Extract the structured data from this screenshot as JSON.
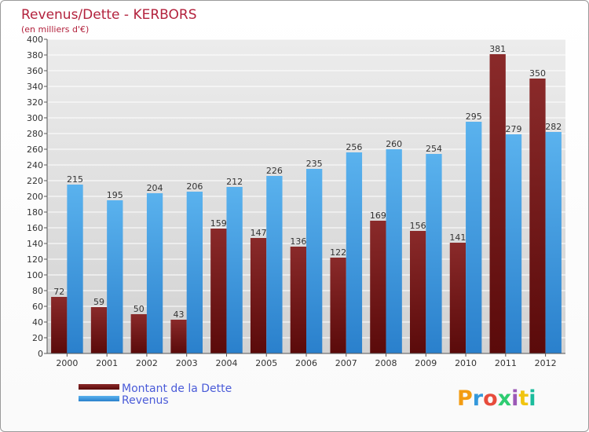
{
  "chart_data": {
    "type": "bar",
    "title": "Revenus/Dette - KERBORS",
    "subtitle": "(en milliers d'€)",
    "xlabel": "",
    "ylabel": "",
    "ylim": [
      0,
      400
    ],
    "ytick_step": 20,
    "grid": true,
    "categories": [
      "2000",
      "2001",
      "2002",
      "2003",
      "2004",
      "2005",
      "2006",
      "2007",
      "2008",
      "2009",
      "2010",
      "2011",
      "2012"
    ],
    "series": [
      {
        "name": "Montant de la Dette",
        "color": "#7a1a1a",
        "values": [
          72,
          59,
          50,
          43,
          159,
          147,
          136,
          122,
          169,
          156,
          141,
          381,
          350
        ]
      },
      {
        "name": "Revenus",
        "color": "#3d9ee6",
        "values": [
          215,
          195,
          204,
          206,
          212,
          226,
          235,
          256,
          260,
          254,
          295,
          279,
          282
        ]
      }
    ],
    "legend_position": "bottom-left"
  },
  "brand": {
    "logo_text": "Proxiti",
    "colors": [
      "#f39c12",
      "#3498db",
      "#e74c3c",
      "#2ecc71",
      "#9b59b6",
      "#f1c40f",
      "#1abc9c"
    ]
  }
}
